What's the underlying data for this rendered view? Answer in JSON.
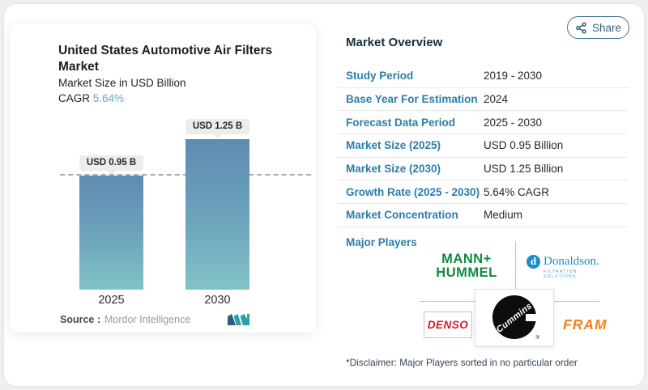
{
  "share": {
    "label": "Share"
  },
  "chart": {
    "title": "United States Automotive Air Filters Market",
    "subtitle": "Market Size in USD Billion",
    "cagr_label": "CAGR",
    "cagr_value": "5.64%",
    "source_label": "Source :",
    "source_value": "Mordor Intelligence"
  },
  "chart_data": {
    "type": "bar",
    "title": "United States Automotive Air Filters Market",
    "subtitle": "Market Size in USD Billion",
    "cagr": "5.64%",
    "categories": [
      "2025",
      "2030"
    ],
    "values": [
      0.95,
      1.25
    ],
    "bar_labels": [
      "USD 0.95 B",
      "USD 1.25 B"
    ],
    "ylim": [
      0,
      1.35
    ],
    "reference_line": 0.95,
    "grid": "off",
    "legend": "none",
    "bar_color_gradient": [
      "#5e8bb1",
      "#83c3c6"
    ],
    "source": "Mordor Intelligence"
  },
  "overview": {
    "title": "Market Overview",
    "rows": [
      {
        "label": "Study Period",
        "value": "2019 - 2030"
      },
      {
        "label": "Base Year For Estimation",
        "value": "2024"
      },
      {
        "label": "Forecast Data Period",
        "value": "2025 - 2030"
      },
      {
        "label": "Market Size (2025)",
        "value": "USD 0.95 Billion"
      },
      {
        "label": "Market Size (2030)",
        "value": "USD 1.25 Billion"
      },
      {
        "label": "Growth Rate (2025 - 2030)",
        "value": "5.64% CAGR"
      },
      {
        "label": "Market Concentration",
        "value": "Medium"
      }
    ],
    "major_players_label": "Major Players"
  },
  "players": {
    "mann_hummel": {
      "line1": "MANN+",
      "line2": "HUMMEL",
      "color": "#0e8c42"
    },
    "donaldson": {
      "initial": "d",
      "name": "Donaldson.",
      "tagline": "FILTRATION SOLUTIONS",
      "color": "#1b8dce"
    },
    "denso": {
      "name": "DENSO",
      "color": "#dc1626"
    },
    "cummins": {
      "name": "Cummins",
      "reg": "®"
    },
    "fram": {
      "name": "FRAM",
      "color": "#f5821f"
    }
  },
  "disclaimer": "*Disclaimer: Major Players sorted in no particular order",
  "colors": {
    "accent_blue": "#2a7eac",
    "cagr_value": "#67aac9",
    "share_border": "#41718f",
    "badge_bg": "#ececed",
    "heading": "#14303c"
  }
}
